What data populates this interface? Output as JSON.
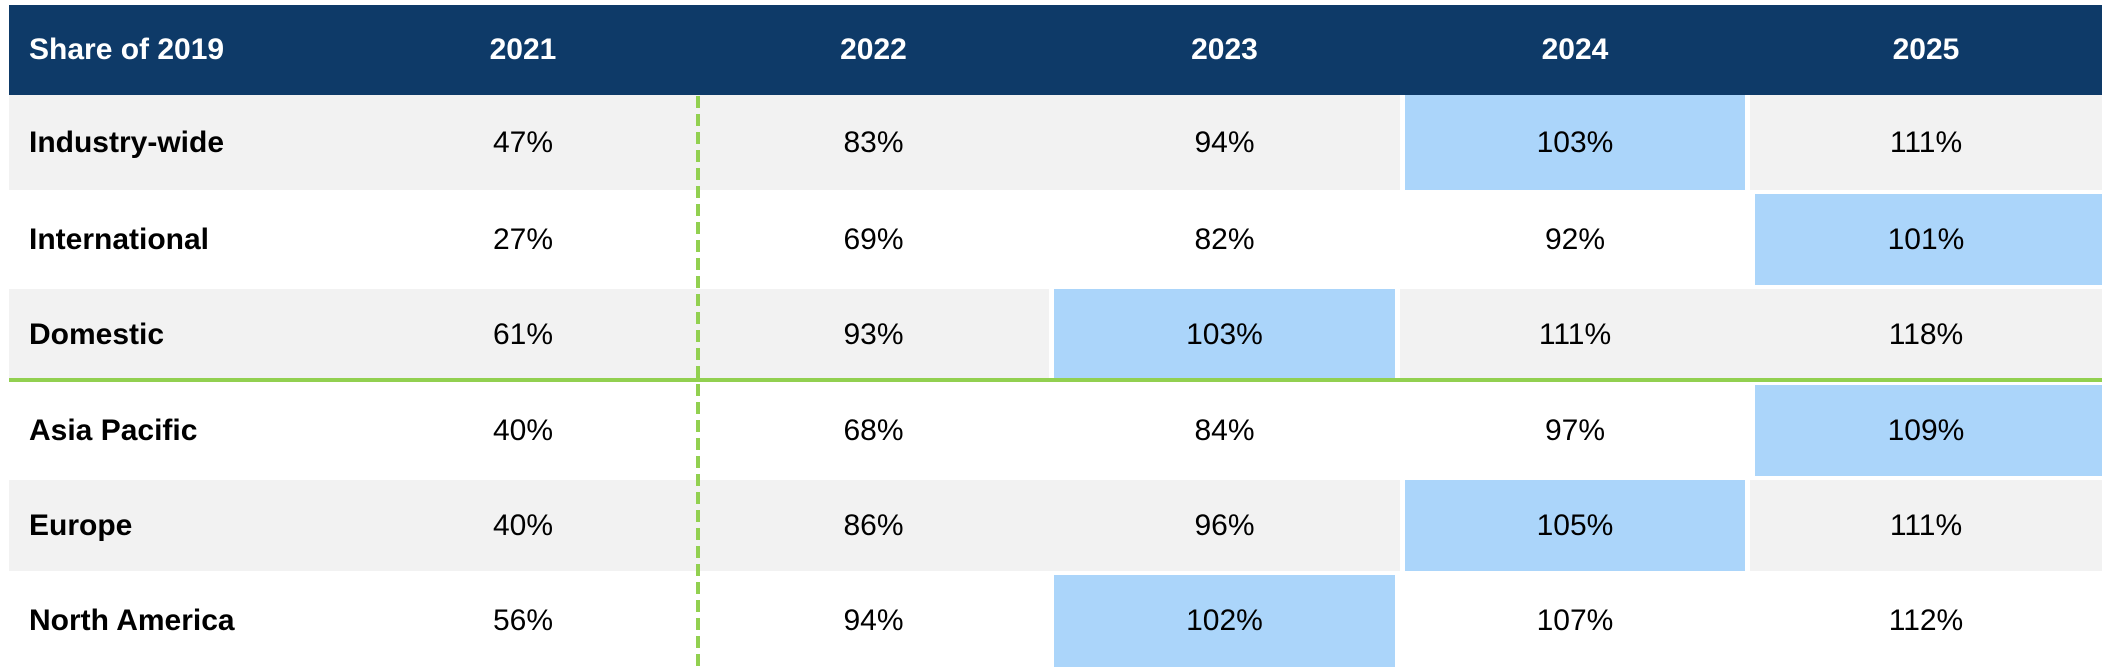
{
  "table": {
    "header": {
      "title": "Share of 2019",
      "years": [
        "2021",
        "2022",
        "2023",
        "2024",
        "2025"
      ]
    },
    "rows": [
      {
        "label": "Industry-wide",
        "values": [
          "47%",
          "83%",
          "94%",
          "103%",
          "111%"
        ],
        "highlight": [
          false,
          false,
          false,
          true,
          false
        ]
      },
      {
        "label": "International",
        "values": [
          "27%",
          "69%",
          "82%",
          "92%",
          "101%"
        ],
        "highlight": [
          false,
          false,
          false,
          false,
          true
        ]
      },
      {
        "label": "Domestic",
        "values": [
          "61%",
          "93%",
          "103%",
          "111%",
          "118%"
        ],
        "highlight": [
          false,
          false,
          true,
          false,
          false
        ]
      },
      {
        "label": "Asia Pacific",
        "values": [
          "40%",
          "68%",
          "84%",
          "97%",
          "109%"
        ],
        "highlight": [
          false,
          false,
          false,
          false,
          true
        ]
      },
      {
        "label": "Europe",
        "values": [
          "40%",
          "86%",
          "96%",
          "105%",
          "111%"
        ],
        "highlight": [
          false,
          false,
          false,
          true,
          false
        ]
      },
      {
        "label": "North America",
        "values": [
          "56%",
          "94%",
          "102%",
          "107%",
          "112%"
        ],
        "highlight": [
          false,
          false,
          true,
          false,
          false
        ]
      }
    ],
    "colors": {
      "header_background": "#0e3a68",
      "header_text": "#ffffff",
      "row_alt_background": "#f2f2f2",
      "row_background": "#ffffff",
      "highlight_background": "#abd5fa",
      "divider_green": "#92d050",
      "body_text": "#000000"
    }
  },
  "chart_data": {
    "type": "table",
    "title": "Share of 2019",
    "columns": [
      "2021",
      "2022",
      "2023",
      "2024",
      "2025"
    ],
    "row_labels": [
      "Industry-wide",
      "International",
      "Domestic",
      "Asia Pacific",
      "Europe",
      "North America"
    ],
    "values_pct": [
      [
        47,
        83,
        94,
        103,
        111
      ],
      [
        27,
        69,
        82,
        92,
        101
      ],
      [
        61,
        93,
        103,
        111,
        118
      ],
      [
        40,
        68,
        84,
        97,
        109
      ],
      [
        40,
        86,
        96,
        105,
        111
      ],
      [
        56,
        94,
        102,
        107,
        112
      ]
    ],
    "highlighted_cells": [
      {
        "row": "Industry-wide",
        "column": "2024",
        "value": 103
      },
      {
        "row": "International",
        "column": "2025",
        "value": 101
      },
      {
        "row": "Domestic",
        "column": "2023",
        "value": 103
      },
      {
        "row": "Asia Pacific",
        "column": "2025",
        "value": 109
      },
      {
        "row": "Europe",
        "column": "2024",
        "value": 105
      },
      {
        "row": "North America",
        "column": "2023",
        "value": 102
      }
    ],
    "layout_hints": {
      "dashed_green_vertical_divider_after_column": "2021",
      "solid_green_horizontal_divider_after_row": "Domestic",
      "alternating_row_shading": true
    }
  }
}
